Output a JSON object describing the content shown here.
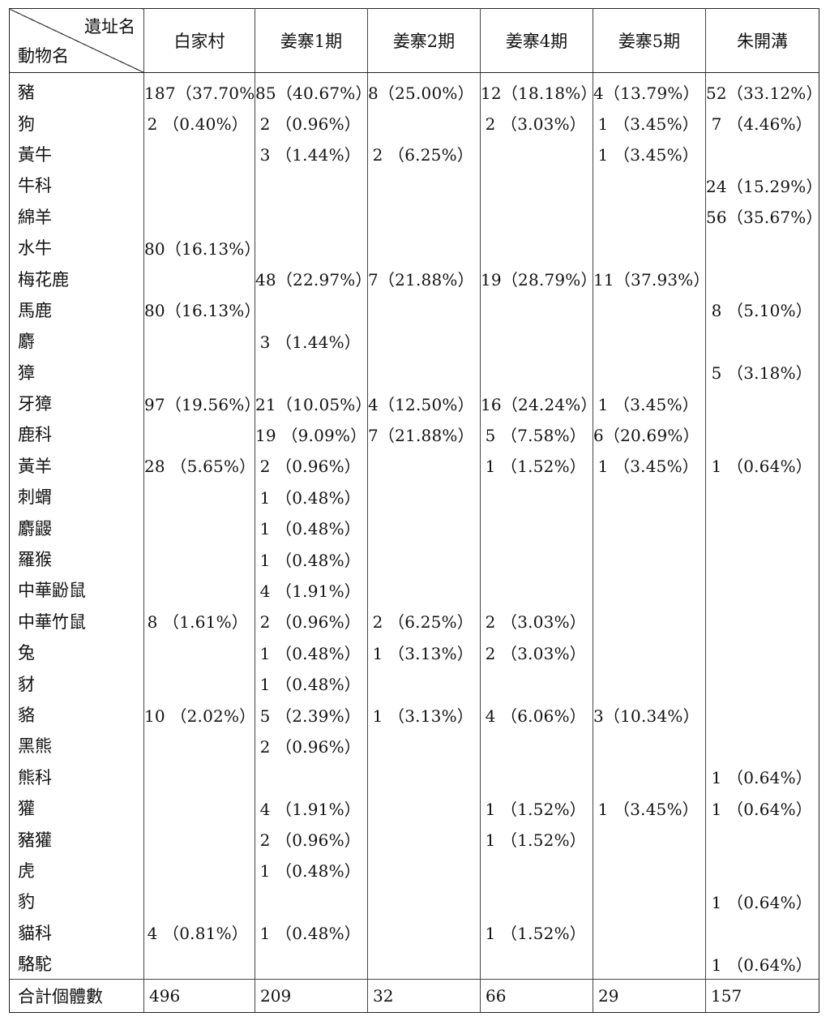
{
  "table": {
    "corner_top": "遺址名",
    "corner_bottom": "動物名",
    "sites": [
      "白家村",
      "姜寨1期",
      "姜寨2期",
      "姜寨4期",
      "姜寨5期",
      "朱開溝"
    ],
    "rows": [
      {
        "animal": "豬",
        "cells": [
          "187（37.70%）",
          "85（40.67%）",
          "8（25.00%）",
          "12（18.18%）",
          "4（13.79%）",
          "52（33.12%）"
        ]
      },
      {
        "animal": "狗",
        "cells": [
          "2 （0.40%）",
          "2 （0.96%）",
          "",
          "2 （3.03%）",
          "1 （3.45%）",
          "7 （4.46%）"
        ]
      },
      {
        "animal": "黃牛",
        "cells": [
          "",
          "3 （1.44%）",
          "2 （6.25%）",
          "",
          "1 （3.45%）",
          ""
        ]
      },
      {
        "animal": "牛科",
        "cells": [
          "",
          "",
          "",
          "",
          "",
          "24（15.29%）"
        ]
      },
      {
        "animal": "綿羊",
        "cells": [
          "",
          "",
          "",
          "",
          "",
          "56（35.67%）"
        ]
      },
      {
        "animal": "水牛",
        "cells": [
          "80（16.13%）",
          "",
          "",
          "",
          "",
          ""
        ]
      },
      {
        "animal": "梅花鹿",
        "cells": [
          "",
          "48（22.97%）",
          "7（21.88%）",
          "19（28.79%）",
          "11（37.93%）",
          ""
        ]
      },
      {
        "animal": "馬鹿",
        "cells": [
          "80（16.13%）",
          "",
          "",
          "",
          "",
          "8 （5.10%）"
        ]
      },
      {
        "animal": "麝",
        "cells": [
          "",
          "3 （1.44%）",
          "",
          "",
          "",
          ""
        ]
      },
      {
        "animal": "獐",
        "cells": [
          "",
          "",
          "",
          "",
          "",
          "5 （3.18%）"
        ]
      },
      {
        "animal": "牙獐",
        "cells": [
          "97（19.56%）",
          "21（10.05%）",
          "4（12.50%）",
          "16（24.24%）",
          "1 （3.45%）",
          ""
        ]
      },
      {
        "animal": "鹿科",
        "cells": [
          "",
          "19 （9.09%）",
          "7（21.88%）",
          "5 （7.58%）",
          "6（20.69%）",
          ""
        ]
      },
      {
        "animal": "黃羊",
        "cells": [
          "28 （5.65%）",
          "2 （0.96%）",
          "",
          "1 （1.52%）",
          "1 （3.45%）",
          "1 （0.64%）"
        ]
      },
      {
        "animal": "刺蝟",
        "cells": [
          "",
          "1 （0.48%）",
          "",
          "",
          "",
          ""
        ]
      },
      {
        "animal": "麝鼹",
        "cells": [
          "",
          "1 （0.48%）",
          "",
          "",
          "",
          ""
        ]
      },
      {
        "animal": "羅猴",
        "cells": [
          "",
          "1 （0.48%）",
          "",
          "",
          "",
          ""
        ]
      },
      {
        "animal": "中華鼢鼠",
        "cells": [
          "",
          "4 （1.91%）",
          "",
          "",
          "",
          ""
        ]
      },
      {
        "animal": "中華竹鼠",
        "cells": [
          "8 （1.61%）",
          "2 （0.96%）",
          "2 （6.25%）",
          "2 （3.03%）",
          "",
          ""
        ]
      },
      {
        "animal": "兔",
        "cells": [
          "",
          "1 （0.48%）",
          "1 （3.13%）",
          "2 （3.03%）",
          "",
          ""
        ]
      },
      {
        "animal": "豺",
        "cells": [
          "",
          "1 （0.48%）",
          "",
          "",
          "",
          ""
        ]
      },
      {
        "animal": "貉",
        "cells": [
          "10 （2.02%）",
          "5 （2.39%）",
          "1 （3.13%）",
          "4 （6.06%）",
          "3（10.34%）",
          ""
        ]
      },
      {
        "animal": "黑熊",
        "cells": [
          "",
          "2 （0.96%）",
          "",
          "",
          "",
          ""
        ]
      },
      {
        "animal": "熊科",
        "cells": [
          "",
          "",
          "",
          "",
          "",
          "1 （0.64%）"
        ]
      },
      {
        "animal": "獾",
        "cells": [
          "",
          "4 （1.91%）",
          "",
          "1 （1.52%）",
          "1 （3.45%）",
          "1 （0.64%）"
        ]
      },
      {
        "animal": "豬獾",
        "cells": [
          "",
          "2 （0.96%）",
          "",
          "1 （1.52%）",
          "",
          ""
        ]
      },
      {
        "animal": "虎",
        "cells": [
          "",
          "1 （0.48%）",
          "",
          "",
          "",
          ""
        ]
      },
      {
        "animal": "豹",
        "cells": [
          "",
          "",
          "",
          "",
          "",
          "1 （0.64%）"
        ]
      },
      {
        "animal": "貓科",
        "cells": [
          "4 （0.81%）",
          "1 （0.48%）",
          "",
          "1 （1.52%）",
          "",
          ""
        ]
      },
      {
        "animal": "駱駝",
        "cells": [
          "",
          "",
          "",
          "",
          "",
          "1 （0.64%）"
        ]
      }
    ],
    "total": {
      "label": "合計個體數",
      "cells": [
        "496",
        "209",
        "32",
        "66",
        "29",
        "157"
      ]
    }
  }
}
